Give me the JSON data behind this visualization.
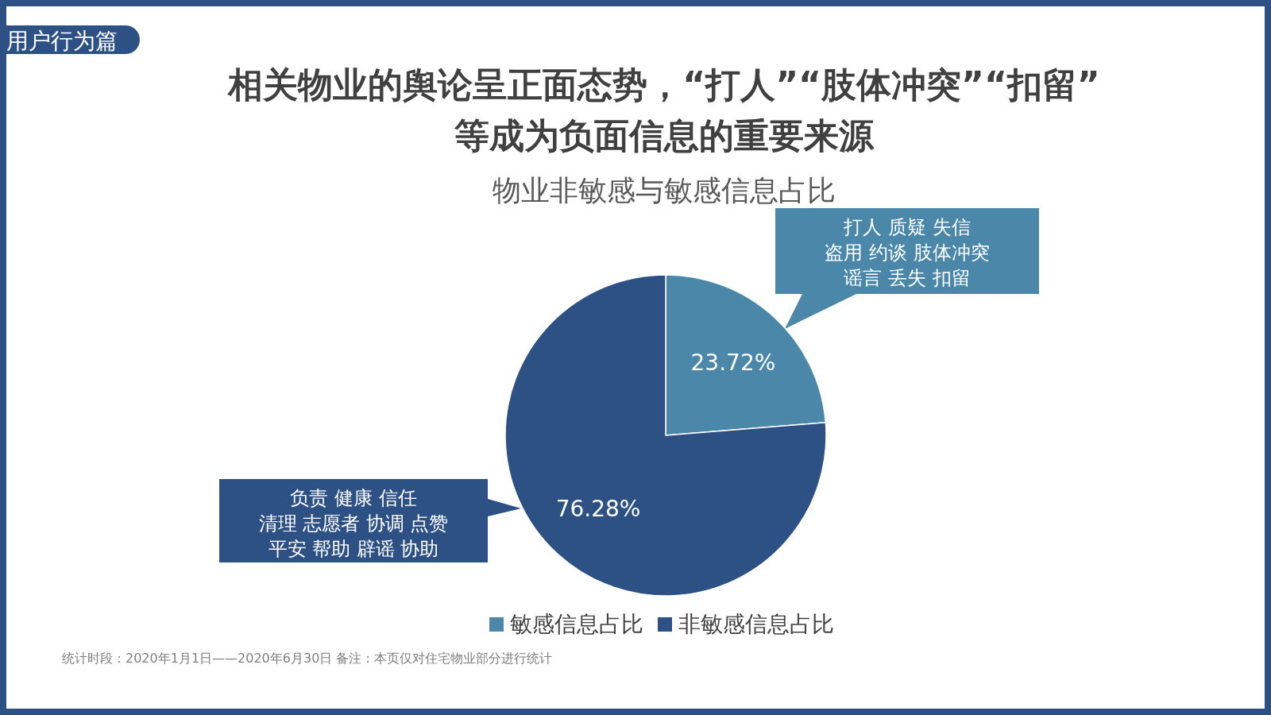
{
  "chart_data": {
    "type": "pie",
    "title": "相关物业的舆论呈正面态势，“打人”“肢体冲突”“扣留”等成为负面信息的重要来源",
    "subtitle": "物业非敏感与敏感信息占比",
    "categories": [
      "敏感信息占比",
      "非敏感信息占比"
    ],
    "values": [
      23.72,
      76.28
    ],
    "colors": [
      "#4a87a8",
      "#2d5184"
    ],
    "value_labels": [
      "23.72%",
      "76.28%"
    ],
    "legend": "bottom",
    "annotations": [
      "用户行为篇",
      "打人 质疑  失信",
      "盗用 约谈 肢体冲突",
      "谣言  丢失 扣留",
      "负责 健康 信任",
      "清理 志愿者 协调 点赞",
      "平安  帮助 辟谣 协助",
      "统计时段：2020年1月1日——2020年6月30日  备注：本页仅对住宅物业部分进行统计"
    ]
  }
}
